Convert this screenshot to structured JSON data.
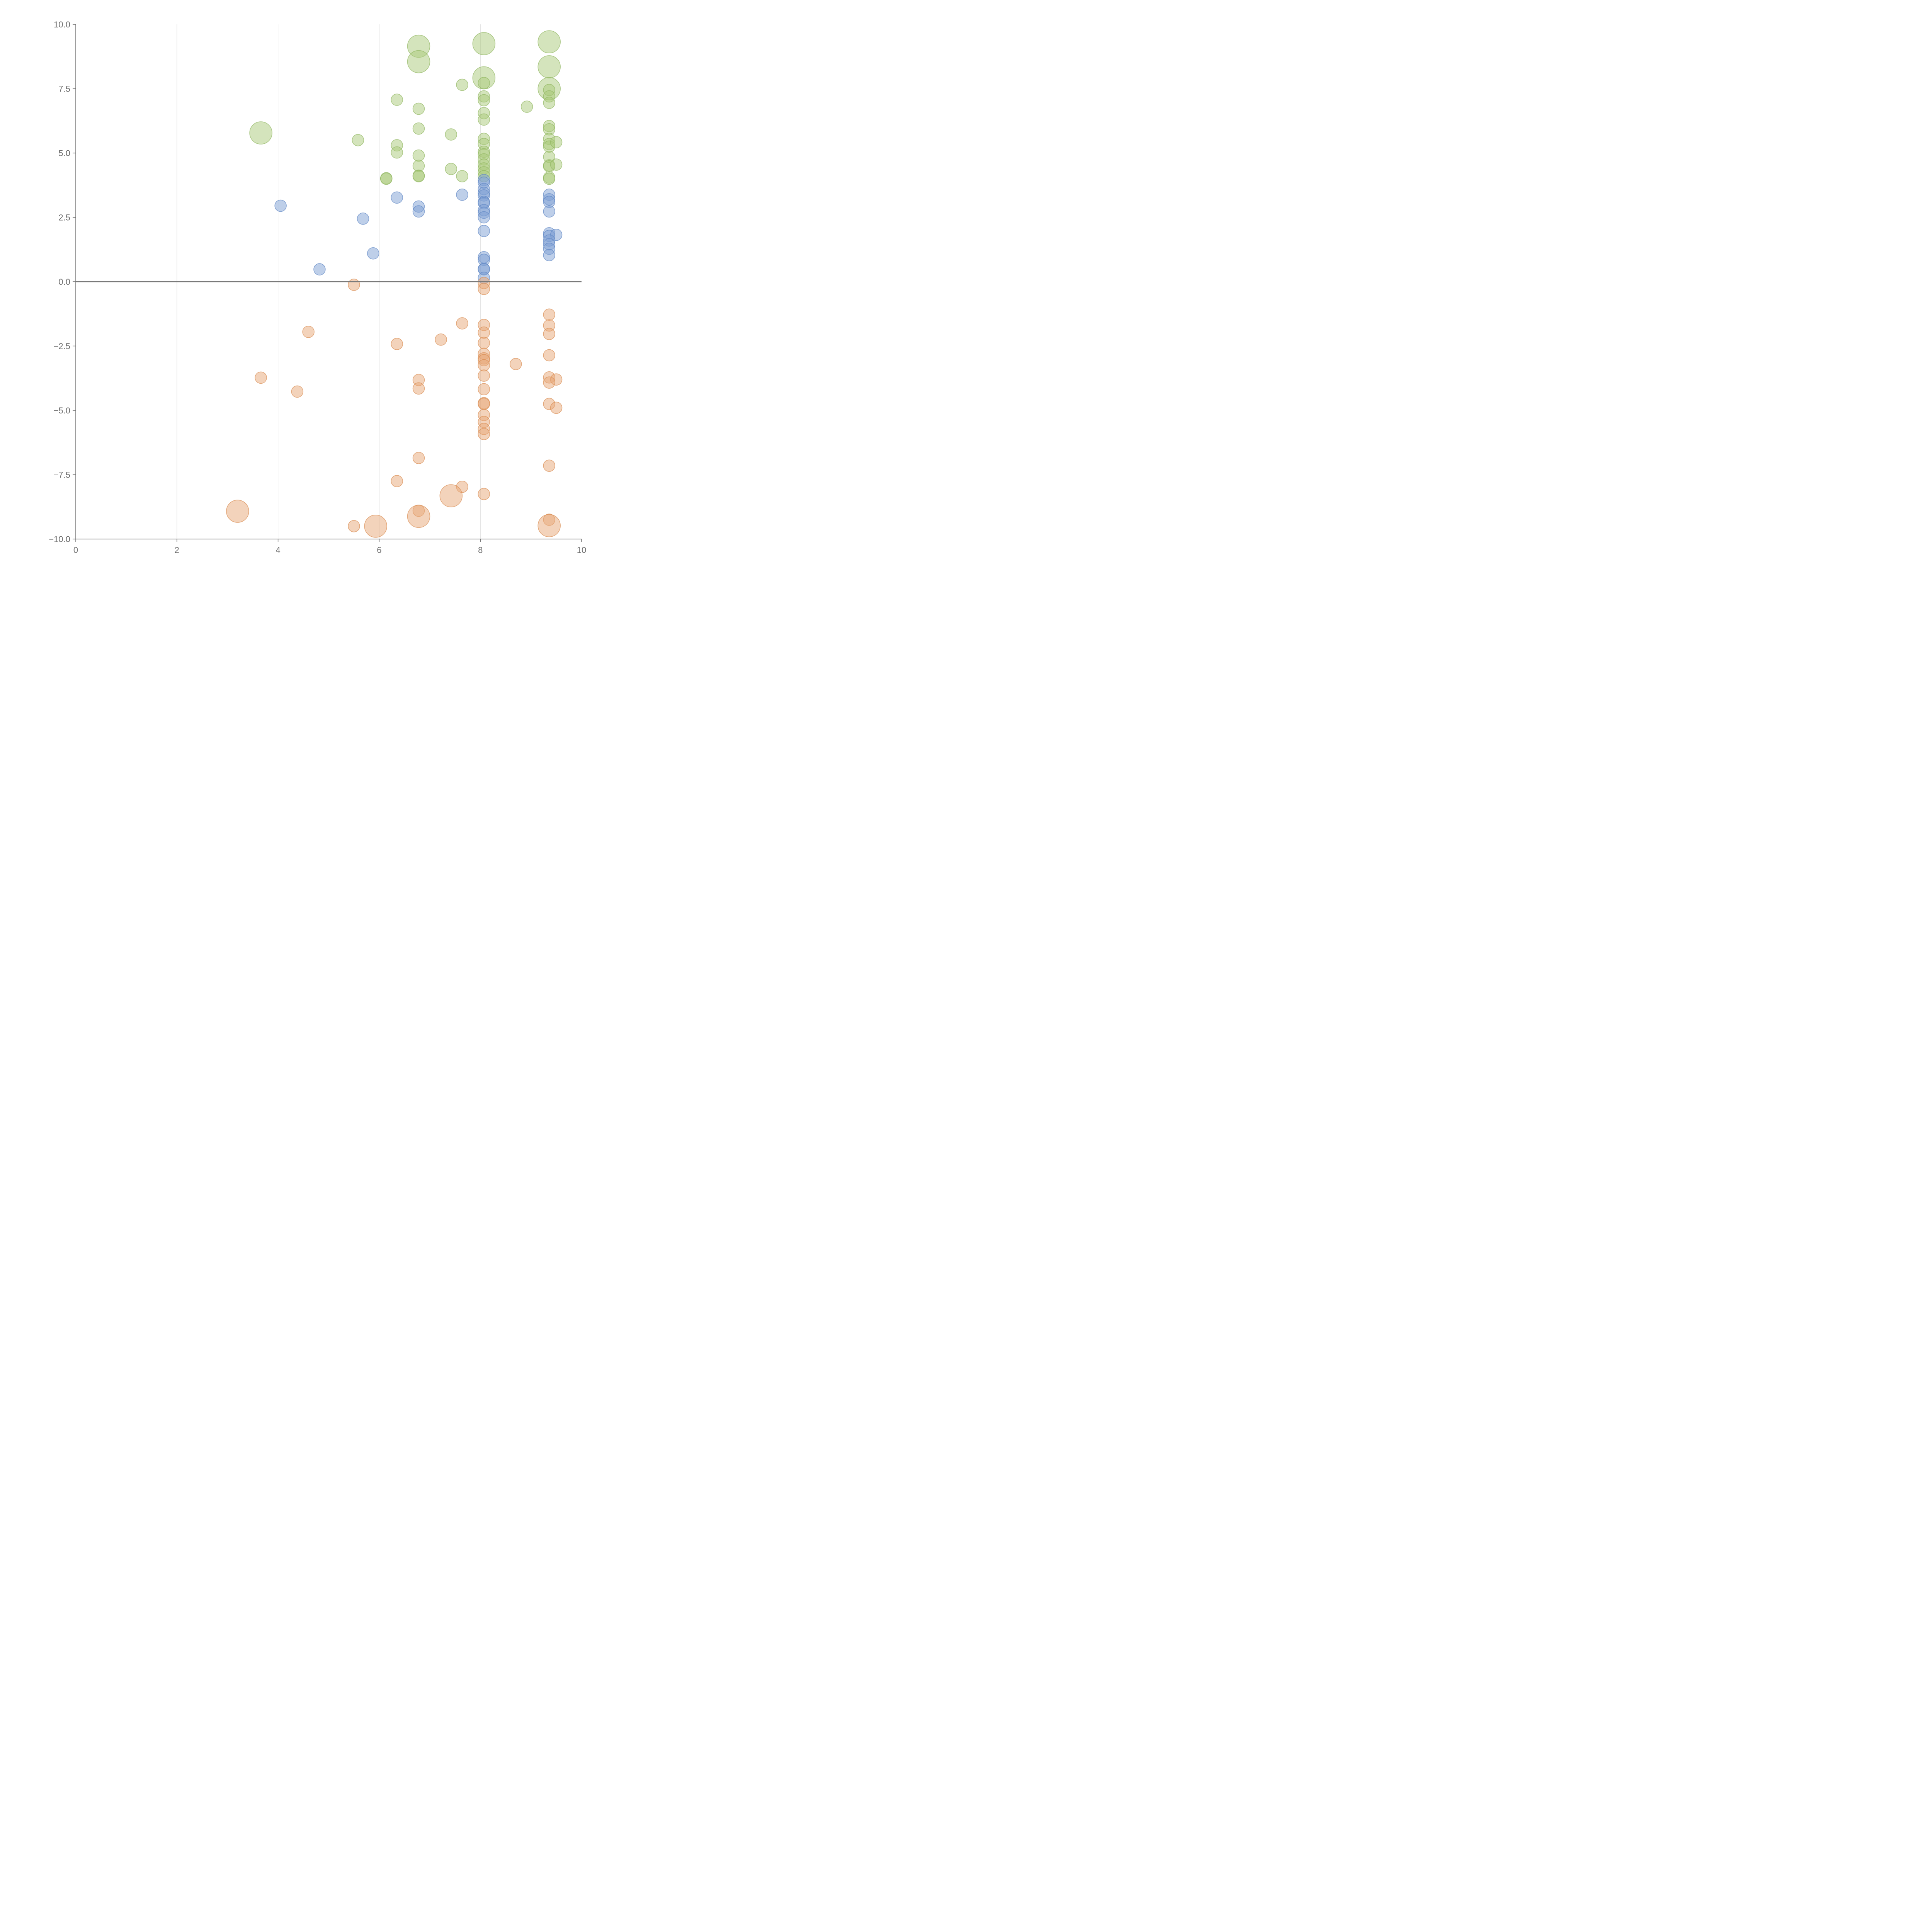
{
  "chart_data": {
    "type": "scatter",
    "title": "",
    "xlabel": "",
    "ylabel": "",
    "xlim": [
      0,
      10
    ],
    "ylim": [
      -10,
      10
    ],
    "x_ticks": [
      "0",
      "2",
      "4",
      "6",
      "8",
      "10"
    ],
    "x_tick_values": [
      0,
      2,
      4,
      6,
      8,
      10
    ],
    "y_ticks": [
      "10.0",
      "7.5",
      "5.0",
      "2.5",
      "0.0",
      "−2.5",
      "−5.0",
      "−7.5",
      "−10.0"
    ],
    "y_tick_values": [
      10,
      7.5,
      5,
      2.5,
      0,
      -2.5,
      -5,
      -7.5,
      -10
    ],
    "x_grid_values": [
      2,
      4,
      6,
      8
    ],
    "zero_line_y": 0,
    "colors": {
      "green_fill": "#a9c97a",
      "green_stroke": "#8fb55e",
      "blue_fill": "#7d9fd4",
      "blue_stroke": "#5d84c3",
      "orange_fill": "#e8a877",
      "orange_stroke": "#d98a4f",
      "axis": "#6e6e6e",
      "grid": "#dddddd",
      "zero_line": "#7a7a7a"
    },
    "series": [
      {
        "name": "green",
        "points": [
          {
            "x": 6.78,
            "y": 9.15,
            "size": 3
          },
          {
            "x": 8.07,
            "y": 9.25,
            "size": 3
          },
          {
            "x": 9.36,
            "y": 9.32,
            "size": 3
          },
          {
            "x": 6.78,
            "y": 8.55,
            "size": 3
          },
          {
            "x": 9.36,
            "y": 8.35,
            "size": 3
          },
          {
            "x": 8.07,
            "y": 7.92,
            "size": 3
          },
          {
            "x": 9.36,
            "y": 7.5,
            "size": 3
          },
          {
            "x": 3.66,
            "y": 5.78,
            "size": 3
          },
          {
            "x": 7.64,
            "y": 7.65,
            "size": 1
          },
          {
            "x": 8.07,
            "y": 7.72,
            "size": 1
          },
          {
            "x": 6.35,
            "y": 7.07,
            "size": 1
          },
          {
            "x": 8.07,
            "y": 7.2,
            "size": 1
          },
          {
            "x": 8.07,
            "y": 7.05,
            "size": 1
          },
          {
            "x": 9.36,
            "y": 7.45,
            "size": 1
          },
          {
            "x": 9.36,
            "y": 7.2,
            "size": 1
          },
          {
            "x": 9.36,
            "y": 6.95,
            "size": 1
          },
          {
            "x": 6.78,
            "y": 6.72,
            "size": 1
          },
          {
            "x": 8.92,
            "y": 6.8,
            "size": 1
          },
          {
            "x": 8.07,
            "y": 6.55,
            "size": 1
          },
          {
            "x": 8.07,
            "y": 6.3,
            "size": 1
          },
          {
            "x": 9.36,
            "y": 6.05,
            "size": 1
          },
          {
            "x": 9.36,
            "y": 5.92,
            "size": 1
          },
          {
            "x": 6.78,
            "y": 5.95,
            "size": 1
          },
          {
            "x": 5.58,
            "y": 5.5,
            "size": 1
          },
          {
            "x": 7.42,
            "y": 5.72,
            "size": 1
          },
          {
            "x": 8.07,
            "y": 5.55,
            "size": 1
          },
          {
            "x": 8.07,
            "y": 5.35,
            "size": 1
          },
          {
            "x": 9.36,
            "y": 5.55,
            "size": 1
          },
          {
            "x": 9.36,
            "y": 5.35,
            "size": 1
          },
          {
            "x": 9.36,
            "y": 5.25,
            "size": 1
          },
          {
            "x": 9.5,
            "y": 5.42,
            "size": 1
          },
          {
            "x": 6.35,
            "y": 5.3,
            "size": 1
          },
          {
            "x": 6.35,
            "y": 5.02,
            "size": 1
          },
          {
            "x": 8.07,
            "y": 5.05,
            "size": 1
          },
          {
            "x": 8.07,
            "y": 4.95,
            "size": 1
          },
          {
            "x": 6.78,
            "y": 4.9,
            "size": 1
          },
          {
            "x": 9.36,
            "y": 4.85,
            "size": 1
          },
          {
            "x": 8.07,
            "y": 4.75,
            "size": 1
          },
          {
            "x": 8.07,
            "y": 4.55,
            "size": 1
          },
          {
            "x": 6.78,
            "y": 4.5,
            "size": 1
          },
          {
            "x": 9.36,
            "y": 4.52,
            "size": 1
          },
          {
            "x": 9.36,
            "y": 4.48,
            "size": 1
          },
          {
            "x": 9.5,
            "y": 4.55,
            "size": 1
          },
          {
            "x": 8.07,
            "y": 4.4,
            "size": 1
          },
          {
            "x": 7.42,
            "y": 4.38,
            "size": 1
          },
          {
            "x": 8.07,
            "y": 4.25,
            "size": 1
          },
          {
            "x": 6.78,
            "y": 4.12,
            "size": 1
          },
          {
            "x": 6.78,
            "y": 4.1,
            "size": 1
          },
          {
            "x": 7.64,
            "y": 4.1,
            "size": 1
          },
          {
            "x": 8.07,
            "y": 4.1,
            "size": 1
          },
          {
            "x": 6.14,
            "y": 4.02,
            "size": 1
          },
          {
            "x": 6.14,
            "y": 4.0,
            "size": 1
          },
          {
            "x": 9.36,
            "y": 4.05,
            "size": 1
          },
          {
            "x": 9.36,
            "y": 4.0,
            "size": 1
          }
        ]
      },
      {
        "name": "blue",
        "points": [
          {
            "x": 8.07,
            "y": 3.95,
            "size": 1
          },
          {
            "x": 8.07,
            "y": 3.85,
            "size": 1
          },
          {
            "x": 8.07,
            "y": 3.6,
            "size": 1
          },
          {
            "x": 8.07,
            "y": 3.45,
            "size": 1
          },
          {
            "x": 8.07,
            "y": 3.35,
            "size": 1
          },
          {
            "x": 7.64,
            "y": 3.38,
            "size": 1
          },
          {
            "x": 9.36,
            "y": 3.38,
            "size": 1
          },
          {
            "x": 9.36,
            "y": 3.2,
            "size": 1
          },
          {
            "x": 9.36,
            "y": 3.1,
            "size": 1
          },
          {
            "x": 6.35,
            "y": 3.27,
            "size": 1
          },
          {
            "x": 8.07,
            "y": 3.1,
            "size": 1
          },
          {
            "x": 8.07,
            "y": 3.05,
            "size": 1
          },
          {
            "x": 4.05,
            "y": 2.95,
            "size": 1
          },
          {
            "x": 6.78,
            "y": 2.92,
            "size": 1
          },
          {
            "x": 6.78,
            "y": 2.73,
            "size": 1
          },
          {
            "x": 8.07,
            "y": 2.78,
            "size": 1
          },
          {
            "x": 8.07,
            "y": 2.68,
            "size": 1
          },
          {
            "x": 9.36,
            "y": 2.73,
            "size": 1
          },
          {
            "x": 8.07,
            "y": 2.5,
            "size": 1
          },
          {
            "x": 5.68,
            "y": 2.45,
            "size": 1
          },
          {
            "x": 8.07,
            "y": 1.97,
            "size": 1
          },
          {
            "x": 9.36,
            "y": 1.88,
            "size": 1
          },
          {
            "x": 9.36,
            "y": 1.78,
            "size": 1
          },
          {
            "x": 9.5,
            "y": 1.82,
            "size": 1
          },
          {
            "x": 9.36,
            "y": 1.6,
            "size": 1
          },
          {
            "x": 9.36,
            "y": 1.45,
            "size": 1
          },
          {
            "x": 9.36,
            "y": 1.28,
            "size": 1
          },
          {
            "x": 5.88,
            "y": 1.1,
            "size": 1
          },
          {
            "x": 9.36,
            "y": 1.03,
            "size": 1
          },
          {
            "x": 8.07,
            "y": 0.95,
            "size": 1
          },
          {
            "x": 8.07,
            "y": 0.85,
            "size": 1
          },
          {
            "x": 8.07,
            "y": 0.5,
            "size": 1
          },
          {
            "x": 8.07,
            "y": 0.48,
            "size": 1
          },
          {
            "x": 4.82,
            "y": 0.48,
            "size": 1
          },
          {
            "x": 8.07,
            "y": 0.15,
            "size": 1
          }
        ]
      },
      {
        "name": "orange",
        "points": [
          {
            "x": 8.07,
            "y": -0.05,
            "size": 1
          },
          {
            "x": 5.5,
            "y": -0.12,
            "size": 1
          },
          {
            "x": 8.07,
            "y": -0.28,
            "size": 1
          },
          {
            "x": 9.36,
            "y": -1.28,
            "size": 1
          },
          {
            "x": 7.64,
            "y": -1.62,
            "size": 1
          },
          {
            "x": 8.07,
            "y": -1.68,
            "size": 1
          },
          {
            "x": 9.36,
            "y": -1.7,
            "size": 1
          },
          {
            "x": 4.6,
            "y": -1.95,
            "size": 1
          },
          {
            "x": 8.07,
            "y": -1.98,
            "size": 1
          },
          {
            "x": 9.36,
            "y": -2.03,
            "size": 1
          },
          {
            "x": 7.22,
            "y": -2.25,
            "size": 1
          },
          {
            "x": 6.35,
            "y": -2.42,
            "size": 1
          },
          {
            "x": 8.07,
            "y": -2.38,
            "size": 1
          },
          {
            "x": 8.07,
            "y": -2.8,
            "size": 1
          },
          {
            "x": 9.36,
            "y": -2.86,
            "size": 1
          },
          {
            "x": 8.07,
            "y": -2.98,
            "size": 1
          },
          {
            "x": 8.07,
            "y": -3.05,
            "size": 1
          },
          {
            "x": 8.07,
            "y": -3.25,
            "size": 1
          },
          {
            "x": 8.7,
            "y": -3.2,
            "size": 1
          },
          {
            "x": 3.66,
            "y": -3.73,
            "size": 1
          },
          {
            "x": 8.07,
            "y": -3.65,
            "size": 1
          },
          {
            "x": 9.36,
            "y": -3.72,
            "size": 1
          },
          {
            "x": 9.5,
            "y": -3.8,
            "size": 1
          },
          {
            "x": 6.78,
            "y": -3.82,
            "size": 1
          },
          {
            "x": 9.36,
            "y": -3.92,
            "size": 1
          },
          {
            "x": 6.78,
            "y": -4.15,
            "size": 1
          },
          {
            "x": 8.07,
            "y": -4.18,
            "size": 1
          },
          {
            "x": 4.38,
            "y": -4.27,
            "size": 1
          },
          {
            "x": 8.07,
            "y": -4.72,
            "size": 1
          },
          {
            "x": 8.07,
            "y": -4.75,
            "size": 1
          },
          {
            "x": 9.36,
            "y": -4.75,
            "size": 1
          },
          {
            "x": 9.5,
            "y": -4.9,
            "size": 1
          },
          {
            "x": 8.07,
            "y": -5.18,
            "size": 1
          },
          {
            "x": 8.07,
            "y": -5.45,
            "size": 1
          },
          {
            "x": 8.07,
            "y": -5.72,
            "size": 1
          },
          {
            "x": 8.07,
            "y": -5.92,
            "size": 1
          },
          {
            "x": 6.78,
            "y": -6.85,
            "size": 1
          },
          {
            "x": 9.36,
            "y": -7.15,
            "size": 1
          },
          {
            "x": 6.35,
            "y": -7.75,
            "size": 1
          },
          {
            "x": 7.64,
            "y": -7.97,
            "size": 1
          },
          {
            "x": 8.07,
            "y": -8.25,
            "size": 1
          },
          {
            "x": 6.78,
            "y": -8.9,
            "size": 1
          },
          {
            "x": 9.36,
            "y": -9.25,
            "size": 1
          },
          {
            "x": 5.5,
            "y": -9.5,
            "size": 1
          },
          {
            "x": 7.42,
            "y": -8.32,
            "size": 3
          },
          {
            "x": 3.2,
            "y": -8.92,
            "size": 3
          },
          {
            "x": 6.78,
            "y": -9.12,
            "size": 3
          },
          {
            "x": 5.93,
            "y": -9.5,
            "size": 3
          },
          {
            "x": 9.36,
            "y": -9.48,
            "size": 3
          }
        ]
      }
    ]
  }
}
